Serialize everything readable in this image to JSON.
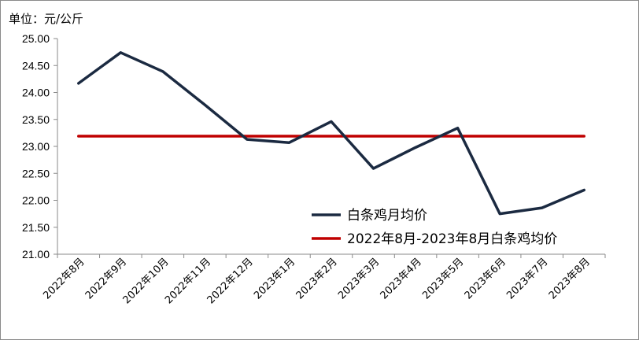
{
  "chart_data": {
    "type": "line",
    "unit_label": "单位：元/公斤",
    "categories": [
      "2022年8月",
      "2022年9月",
      "2022年10月",
      "2022年11月",
      "2022年12月",
      "2023年1月",
      "2023年2月",
      "2023年3月",
      "2023年4月",
      "2023年5月",
      "2023年6月",
      "2023年7月",
      "2023年8月"
    ],
    "series": [
      {
        "name": "白条鸡月均价",
        "color": "#1b2a41",
        "values": [
          24.17,
          24.74,
          24.39,
          23.77,
          23.13,
          23.07,
          23.46,
          22.59,
          22.98,
          23.34,
          21.75,
          21.86,
          22.19
        ]
      },
      {
        "name": "2022年8月-2023年8月白条鸡均价",
        "color": "#c00000",
        "values": [
          23.19,
          23.19,
          23.19,
          23.19,
          23.19,
          23.19,
          23.19,
          23.19,
          23.19,
          23.19,
          23.19,
          23.19,
          23.19
        ]
      }
    ],
    "ylim": [
      21.0,
      25.0
    ],
    "yticks": [
      "21.00",
      "21.50",
      "22.00",
      "22.50",
      "23.00",
      "23.50",
      "24.00",
      "24.50",
      "25.00"
    ],
    "grid": false,
    "legend_position": "lower-right"
  }
}
